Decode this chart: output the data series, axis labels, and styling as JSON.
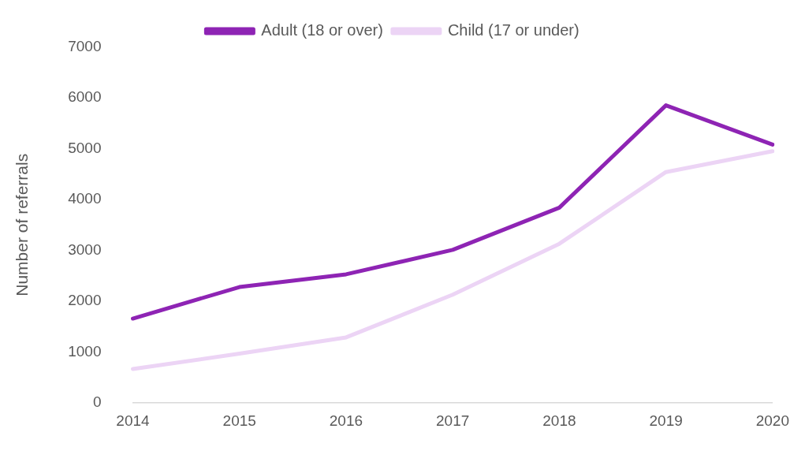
{
  "chart_data": {
    "type": "line",
    "ylabel": "Number of referrals",
    "categories": [
      "2014",
      "2015",
      "2016",
      "2017",
      "2018",
      "2019",
      "2020"
    ],
    "series": [
      {
        "name": "Adult (18 or over)",
        "color": "#8e24b4",
        "values": [
          1660,
          2280,
          2530,
          3010,
          3840,
          5850,
          5080
        ]
      },
      {
        "name": "Child (17 or under)",
        "color": "#ecd4f5",
        "values": [
          670,
          970,
          1290,
          2130,
          3130,
          4540,
          4950
        ]
      }
    ],
    "ylim": [
      0,
      7000
    ],
    "yticks": [
      0,
      1000,
      2000,
      3000,
      4000,
      5000,
      6000,
      7000
    ],
    "grid": false,
    "legend": "top",
    "marker": "none",
    "line_style": "solid"
  }
}
